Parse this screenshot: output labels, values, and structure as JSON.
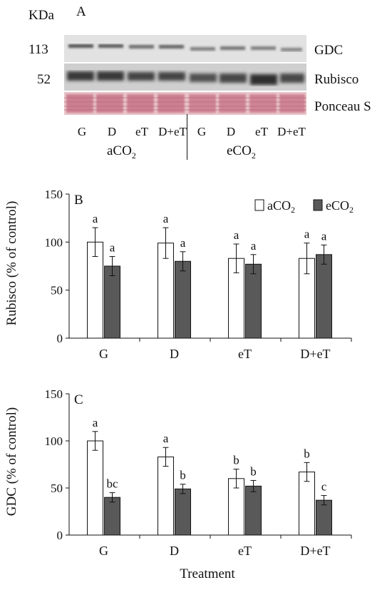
{
  "panel_a": {
    "letter": "A",
    "unit": "KDa",
    "mw_markers": [
      "113",
      "52"
    ],
    "band_labels": [
      "GDC",
      "Rubisco",
      "Ponceau S"
    ],
    "lanes": [
      "G",
      "D",
      "eT",
      "D+eT",
      "G",
      "D",
      "eT",
      "D+eT"
    ],
    "groups": [
      {
        "base": "aCO",
        "sub": "2"
      },
      {
        "base": "eCO",
        "sub": "2"
      }
    ],
    "colors": {
      "ponceau": "#c97a86",
      "blot_bg": "#e4e4e4"
    }
  },
  "chart_data": [
    {
      "type": "bar",
      "panel_letter": "B",
      "categories": [
        "G",
        "D",
        "eT",
        "D+eT"
      ],
      "series": [
        {
          "name": "aCO2",
          "label_base": "aCO",
          "label_sub": "2",
          "color": "#ffffff",
          "values": [
            100,
            99,
            83,
            83
          ],
          "errors": [
            15,
            16,
            15,
            16
          ],
          "letters": [
            "a",
            "a",
            "a",
            "a"
          ]
        },
        {
          "name": "eCO2",
          "label_base": "eCO",
          "label_sub": "2",
          "color": "#595959",
          "values": [
            75,
            80,
            77,
            87
          ],
          "errors": [
            10,
            10,
            10,
            10
          ],
          "letters": [
            "a",
            "a",
            "a",
            "a"
          ]
        }
      ],
      "ylabel": "Rubisco (% of control)",
      "xlabel": "",
      "ylim": [
        0,
        150
      ],
      "yticks": [
        0,
        50,
        100,
        150
      ],
      "legend": "top-right"
    },
    {
      "type": "bar",
      "panel_letter": "C",
      "categories": [
        "G",
        "D",
        "eT",
        "D+eT"
      ],
      "series": [
        {
          "name": "aCO2",
          "color": "#ffffff",
          "values": [
            100,
            83,
            60,
            67
          ],
          "errors": [
            10,
            10,
            10,
            10
          ],
          "letters": [
            "a",
            "a",
            "b",
            "b"
          ]
        },
        {
          "name": "eCO2",
          "color": "#595959",
          "values": [
            40,
            49,
            52,
            37
          ],
          "errors": [
            5,
            5,
            6,
            5
          ],
          "letters": [
            "bc",
            "b",
            "b",
            "c"
          ]
        }
      ],
      "ylabel": "GDC (% of control)",
      "xlabel": "Treatment",
      "ylim": [
        0,
        150
      ],
      "yticks": [
        0,
        50,
        100,
        150
      ],
      "legend": "none"
    }
  ]
}
